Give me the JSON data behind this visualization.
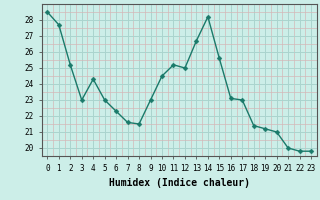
{
  "x": [
    0,
    1,
    2,
    3,
    4,
    5,
    6,
    7,
    8,
    9,
    10,
    11,
    12,
    13,
    14,
    15,
    16,
    17,
    18,
    19,
    20,
    21,
    22,
    23
  ],
  "y": [
    28.5,
    27.7,
    25.2,
    23.0,
    24.3,
    23.0,
    22.3,
    21.6,
    21.5,
    23.0,
    24.5,
    25.2,
    25.0,
    26.7,
    28.2,
    25.6,
    23.1,
    23.0,
    21.4,
    21.2,
    21.0,
    20.0,
    19.8,
    19.8
  ],
  "line_color": "#1a7a6a",
  "marker": "D",
  "marker_size": 2.5,
  "bg_color": "#cceee8",
  "grid_major_color": "#aad4ce",
  "grid_minor_color": "#d4b8b8",
  "xlabel": "Humidex (Indice chaleur)",
  "xlim": [
    -0.5,
    23.5
  ],
  "ylim": [
    19.5,
    29.0
  ],
  "yticks": [
    20,
    21,
    22,
    23,
    24,
    25,
    26,
    27,
    28
  ],
  "xticks": [
    0,
    1,
    2,
    3,
    4,
    5,
    6,
    7,
    8,
    9,
    10,
    11,
    12,
    13,
    14,
    15,
    16,
    17,
    18,
    19,
    20,
    21,
    22,
    23
  ],
  "tick_fontsize": 5.5,
  "label_fontsize": 7
}
